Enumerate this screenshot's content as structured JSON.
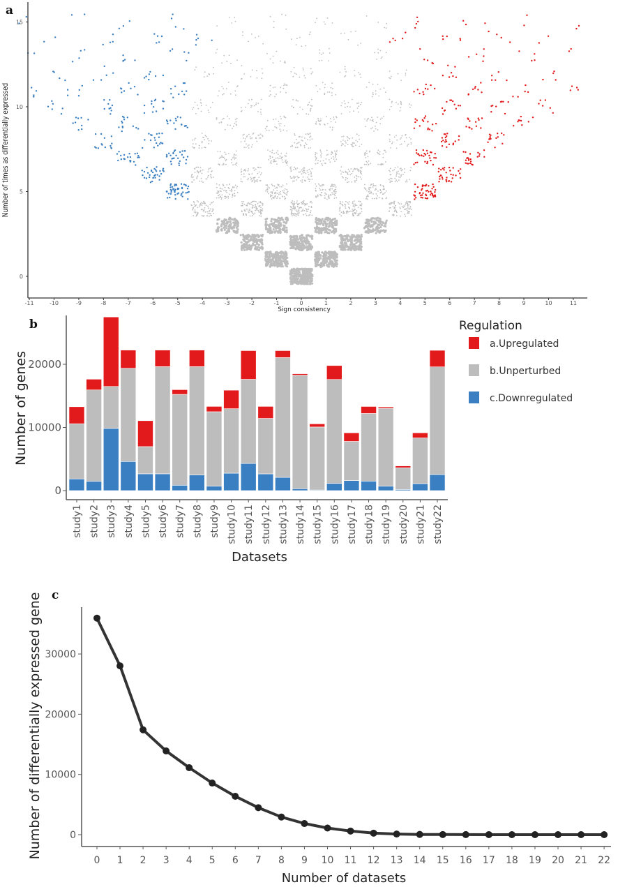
{
  "chart_data": [
    {
      "panel": "a",
      "type": "scatter",
      "title": "",
      "xlabel": "Sign consistency",
      "ylabel": "Number of times as differentially expressed",
      "xlim": [
        -11,
        11
      ],
      "ylim": [
        0,
        15
      ],
      "x_ticks": [
        -11,
        -10,
        -9,
        -8,
        -7,
        -6,
        -5,
        -4,
        -3,
        -2,
        -1,
        0,
        1,
        2,
        3,
        4,
        5,
        6,
        7,
        8,
        9,
        10,
        11
      ],
      "y_ticks": [
        0,
        5,
        10,
        15
      ],
      "description_rule": "points jittered around integer cells (x, y) with |x| <= y and x, y of equal parity",
      "points_per_cell_at_level": [
        300,
        230,
        175,
        135,
        105,
        80,
        62,
        48,
        37,
        28,
        22,
        17,
        13,
        10,
        8,
        6
      ],
      "classes": [
        {
          "name": "downregulated",
          "color": "#3a7fc1",
          "rule": "x <= -5 (or x = -4 at y >= 14)"
        },
        {
          "name": "unperturbed",
          "color": "#bdbdbd",
          "rule": "-4 <= x <= 4"
        },
        {
          "name": "upregulated",
          "color": "#e31a1c",
          "rule": "x >= 5 (or x = 4 at y >= 14)"
        }
      ],
      "panel_label": "a"
    },
    {
      "panel": "b",
      "type": "bar",
      "stacked": true,
      "title": "",
      "xlabel": "Datasets",
      "ylabel": "Number of genes",
      "ylim": [
        0,
        27500
      ],
      "y_ticks": [
        "0",
        "10000",
        "20000"
      ],
      "y_tick_values": [
        0,
        10000,
        20000
      ],
      "categories": [
        "study1",
        "study2",
        "study3",
        "study4",
        "study5",
        "study6",
        "study7",
        "study8",
        "study9",
        "study10",
        "study11",
        "study12",
        "study13",
        "study14",
        "study15",
        "study16",
        "study17",
        "study18",
        "study19",
        "study20",
        "study21",
        "study22"
      ],
      "series": [
        {
          "name": "c.Downregulated",
          "color": "#3a7fc1",
          "values": [
            1850,
            1480,
            9850,
            4610,
            2660,
            2660,
            850,
            2470,
            700,
            2760,
            4290,
            2650,
            2100,
            300,
            100,
            1140,
            1590,
            1510,
            700,
            180,
            1110,
            2550
          ]
        },
        {
          "name": "b.Unperturbed",
          "color": "#bdbdbd",
          "values": [
            8740,
            14460,
            6640,
            14760,
            4310,
            16970,
            14390,
            17160,
            11790,
            10210,
            13330,
            8780,
            18960,
            17980,
            9970,
            16460,
            6200,
            10700,
            12330,
            3440,
            7230,
            17040
          ]
        },
        {
          "name": "a.Upregulated",
          "color": "#e31a1c",
          "values": [
            2690,
            1700,
            11000,
            2880,
            4100,
            2620,
            740,
            2620,
            840,
            2930,
            4540,
            1900,
            1100,
            220,
            500,
            2200,
            1360,
            1110,
            220,
            290,
            810,
            2620
          ]
        }
      ],
      "legend": {
        "title": "Regulation",
        "position": "right",
        "entries": [
          "a.Upregulated",
          "b.Unperturbed",
          "c.Downregulated"
        ]
      },
      "panel_label": "b"
    },
    {
      "panel": "c",
      "type": "line",
      "title": "",
      "xlabel": "Number of datasets",
      "ylabel": "Number of differentially expressed gene",
      "x": [
        0,
        1,
        2,
        3,
        4,
        5,
        6,
        7,
        8,
        9,
        10,
        11,
        12,
        13,
        14,
        15,
        16,
        17,
        18,
        19,
        20,
        21,
        22
      ],
      "y": [
        35950,
        28030,
        17410,
        13900,
        11120,
        8570,
        6370,
        4480,
        2930,
        1850,
        1100,
        600,
        250,
        100,
        40,
        20,
        10,
        5,
        3,
        2,
        1,
        0,
        0
      ],
      "x_ticks": [
        "0",
        "1",
        "2",
        "3",
        "4",
        "5",
        "6",
        "7",
        "8",
        "9",
        "10",
        "11",
        "12",
        "13",
        "14",
        "15",
        "16",
        "17",
        "18",
        "19",
        "20",
        "21",
        "22"
      ],
      "y_ticks": [
        "0",
        "10000",
        "20000",
        "30000"
      ],
      "y_tick_values": [
        0,
        10000,
        20000,
        30000
      ],
      "xlim": [
        0,
        22
      ],
      "ylim": [
        -1500,
        37000
      ],
      "color": "#333333",
      "panel_label": "c"
    }
  ]
}
